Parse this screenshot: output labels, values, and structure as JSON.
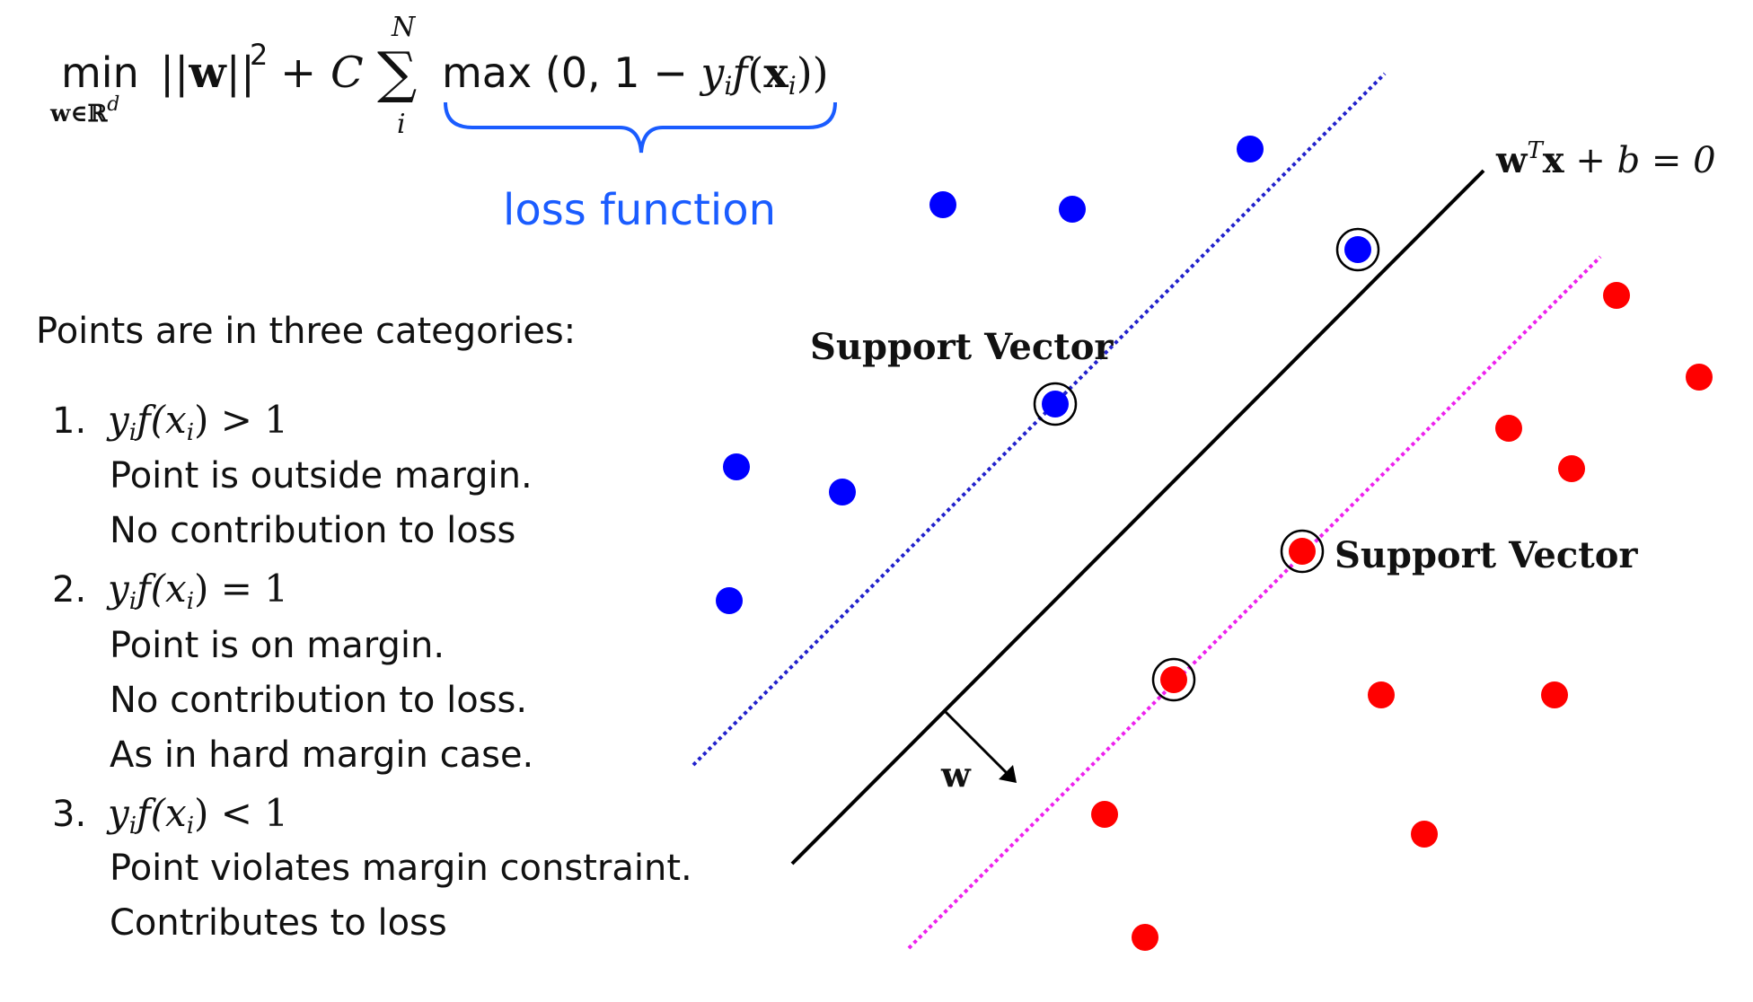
{
  "formula": {
    "min_op": "min",
    "min_subscript": "w∈ℝ",
    "min_subscript_sup": "d",
    "norm_term": "||w||",
    "norm_power": "2",
    "plus": "+",
    "C": "C",
    "sum_symbol": "∑",
    "sum_upper": "N",
    "sum_lower": "i",
    "max_text": "max (0, 1 − ",
    "max_yi": "y",
    "max_i1": "i",
    "max_f": "f",
    "max_open": "(",
    "max_x": "x",
    "max_i2": "i",
    "max_close": "))",
    "loss_label": "loss function"
  },
  "categories": {
    "heading": "Points are in three categories:",
    "items": [
      {
        "num": "1.",
        "cond_lhs": "y",
        "cond_sub": "i",
        "cond_f": "f(x",
        "cond_sub2": "i",
        "cond_rhs": ") > 1",
        "lines": [
          "Point is outside margin.",
          "No contribution to loss"
        ]
      },
      {
        "num": "2.",
        "cond_lhs": "y",
        "cond_sub": "i",
        "cond_f": "f(x",
        "cond_sub2": "i",
        "cond_rhs": ") = 1",
        "lines": [
          "Point is on margin.",
          "No contribution to loss.",
          "As in hard margin case."
        ]
      },
      {
        "num": "3.",
        "cond_lhs": "y",
        "cond_sub": "i",
        "cond_f": "f(x",
        "cond_sub2": "i",
        "cond_rhs": ") < 1",
        "lines": [
          "Point violates margin constraint.",
          "Contributes to loss"
        ]
      }
    ]
  },
  "plot": {
    "hyperplane_label_w": "w",
    "hyperplane_label_T": "T",
    "hyperplane_label_x": "x",
    "hyperplane_label_rest": " + b = 0",
    "support_vector_label_top": "Support Vector",
    "support_vector_label_bottom": "Support Vector",
    "normal_label": "w",
    "colors": {
      "positive_class": "#0000ff",
      "negative_class": "#ff0000",
      "positive_margin": "#2222cc",
      "negative_margin": "#ee22ee",
      "loss_label": "#1a5cff"
    }
  }
}
